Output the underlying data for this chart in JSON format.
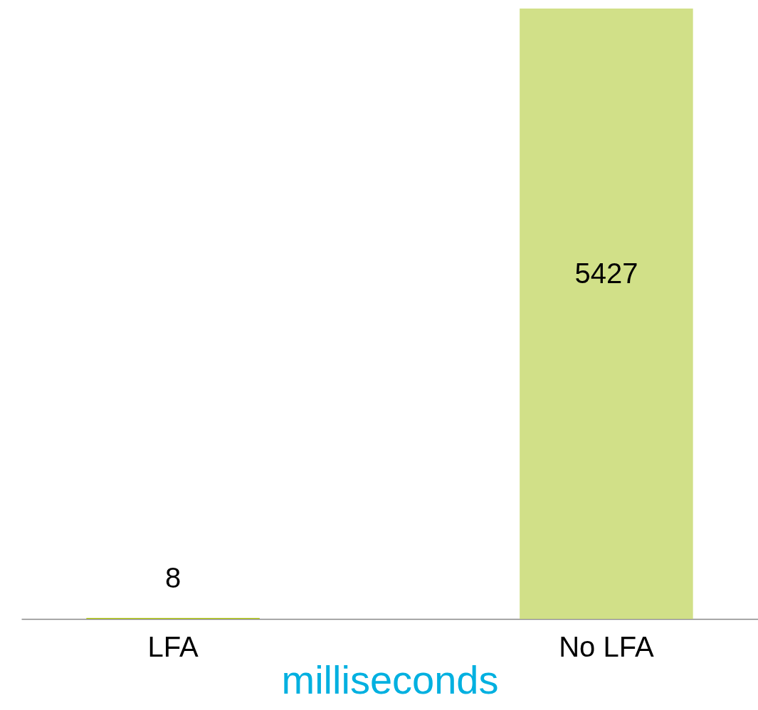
{
  "chart_data": {
    "type": "bar",
    "xlabel": "milliseconds",
    "categories": [
      "LFA",
      "No LFA"
    ],
    "values": [
      8,
      5427
    ],
    "colors": [
      "#a9c000",
      "#d1e088"
    ],
    "data_labels": true
  }
}
